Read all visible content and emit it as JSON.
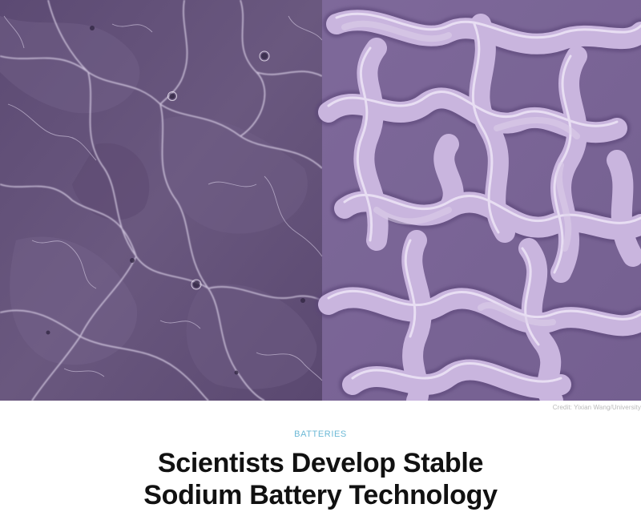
{
  "hero": {
    "credit": "Credit: Yixian Wang/University",
    "left_color": "#6a587f",
    "right_color": "#b9a1d1"
  },
  "article": {
    "category": "BATTERIES",
    "title_line1": "Scientists Develop Stable",
    "title_line2": "Sodium Battery Technology",
    "category_color": "#6cb9d6",
    "title_color": "#111111"
  }
}
